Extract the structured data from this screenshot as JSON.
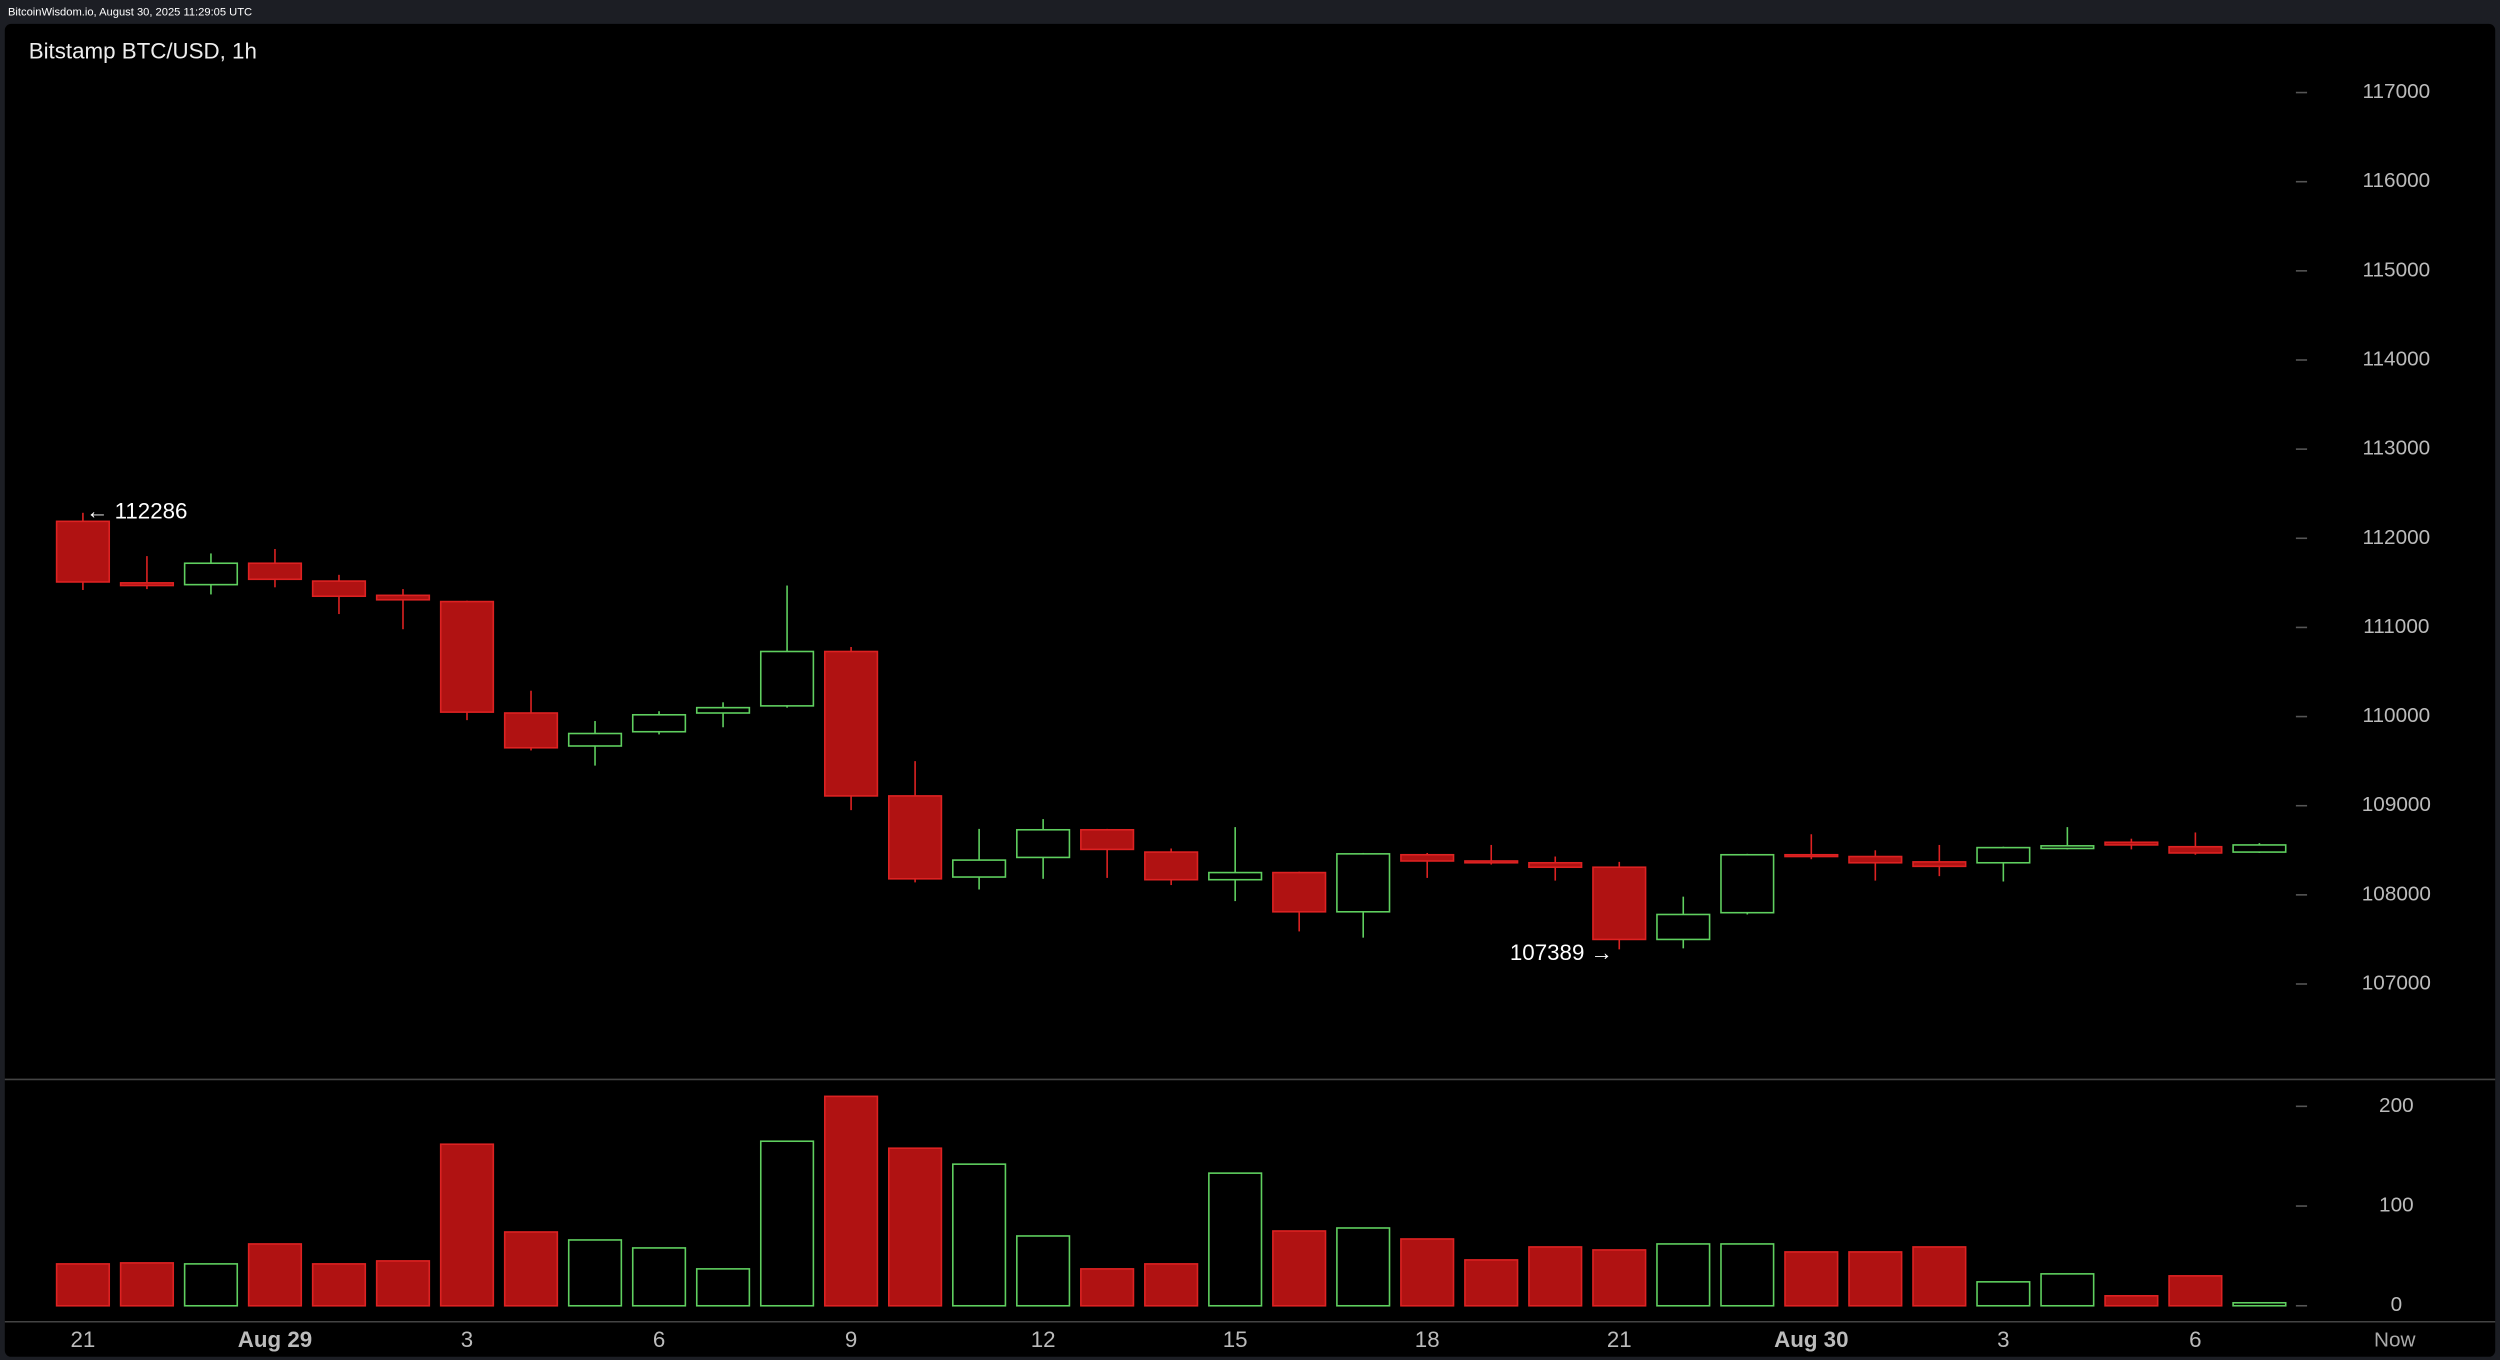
{
  "header": {
    "text": "BitcoinWisdom.io, August 30, 2025 11:29:05 UTC"
  },
  "chart_data": {
    "type": "candlestick",
    "title": "Bitstamp BTC/USD, 1h",
    "categories": [
      "21",
      null,
      null,
      "Aug 29",
      null,
      null,
      "3",
      null,
      null,
      "6",
      null,
      null,
      "9",
      null,
      null,
      "12",
      null,
      null,
      "15",
      null,
      null,
      "18",
      null,
      null,
      "21",
      null,
      null,
      "Aug 30",
      null,
      null,
      "3",
      null,
      null,
      "6",
      null
    ],
    "end_label": "Now",
    "open": [
      112190,
      111500,
      111480,
      111720,
      111520,
      111360,
      111290,
      110040,
      109670,
      109830,
      110040,
      110120,
      110730,
      109110,
      108200,
      108420,
      108730,
      108480,
      108170,
      108250,
      107810,
      108450,
      108380,
      108360,
      108310,
      107500,
      107800,
      108450,
      108430,
      108370,
      108360,
      108520,
      108590,
      108540,
      108480
    ],
    "high": [
      112286,
      111800,
      111830,
      111880,
      111590,
      111430,
      111300,
      110290,
      109950,
      110060,
      110160,
      111470,
      110780,
      109500,
      108740,
      108850,
      108740,
      108520,
      108760,
      108260,
      108470,
      108470,
      108560,
      108430,
      108370,
      107980,
      108460,
      108680,
      108500,
      108560,
      108540,
      108760,
      108630,
      108700,
      108580
    ],
    "low": [
      111420,
      111430,
      111370,
      111450,
      111150,
      110980,
      109960,
      109620,
      109450,
      109800,
      109880,
      110100,
      108950,
      108140,
      108060,
      108180,
      108190,
      108110,
      107930,
      107590,
      107520,
      108190,
      108340,
      108160,
      107389,
      107400,
      107780,
      108400,
      108160,
      108210,
      108150,
      108510,
      108510,
      108450,
      108470
    ],
    "close": [
      111510,
      111470,
      111720,
      111540,
      111350,
      111310,
      110050,
      109650,
      109810,
      110020,
      110100,
      110730,
      109110,
      108180,
      108390,
      108730,
      108510,
      108170,
      108250,
      107810,
      108460,
      108380,
      108360,
      108310,
      107500,
      107780,
      108450,
      108430,
      108360,
      108320,
      108530,
      108550,
      108560,
      108470,
      108560
    ],
    "volume": [
      42,
      43,
      42,
      62,
      42,
      45,
      162,
      74,
      66,
      58,
      37,
      165,
      210,
      158,
      142,
      70,
      37,
      42,
      133,
      75,
      78,
      67,
      46,
      59,
      56,
      62,
      62,
      54,
      54,
      59,
      24,
      32,
      10,
      30,
      3
    ],
    "ylim": [
      105930,
      117770
    ],
    "yticks": [
      107000,
      108000,
      109000,
      110000,
      111000,
      112000,
      113000,
      114000,
      115000,
      116000,
      117000
    ],
    "volume_ylim": [
      -16,
      227
    ],
    "volume_ticks": [
      0,
      100,
      200
    ],
    "annotations": [
      {
        "text": "← 112286",
        "value": 112286
      },
      {
        "text": "107389 →",
        "value": 107389
      }
    ],
    "up_color": "#5fcf5f",
    "down_color": "#b01212",
    "grid": false
  }
}
